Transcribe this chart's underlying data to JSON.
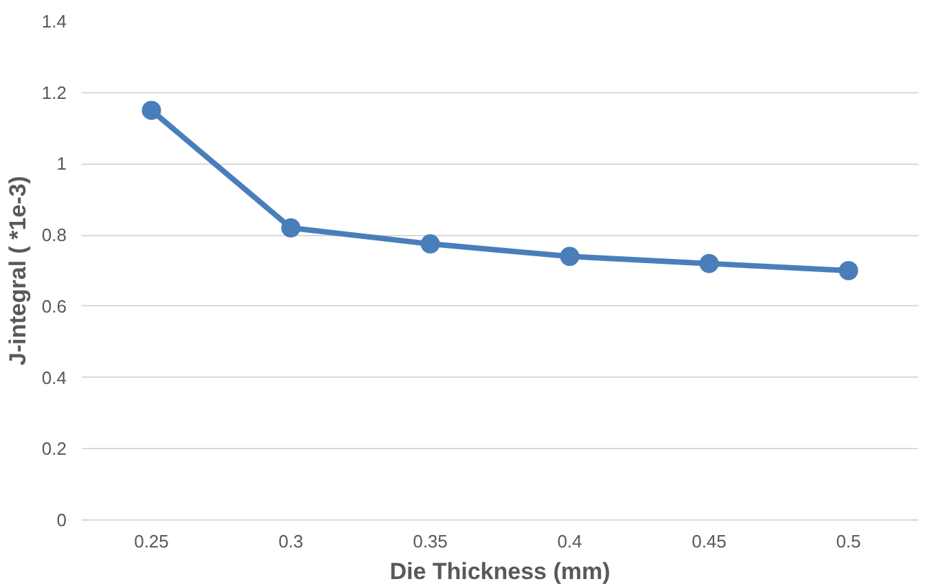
{
  "chart_data": {
    "type": "line",
    "xlabel": "Die Thickness (mm)",
    "ylabel": "J-integral ( *1e-3)",
    "categories": [
      "0.25",
      "0.3",
      "0.35",
      "0.4",
      "0.45",
      "0.5"
    ],
    "values": [
      1.15,
      0.82,
      0.775,
      0.74,
      0.72,
      0.7
    ],
    "color": "#4a7ebb",
    "marker": "circle",
    "line_style": "solid",
    "ylim": [
      0,
      1.4
    ],
    "yticks": [
      0,
      0.2,
      0.4,
      0.6,
      0.8,
      1,
      1.2,
      1.4
    ],
    "grid": "y"
  }
}
